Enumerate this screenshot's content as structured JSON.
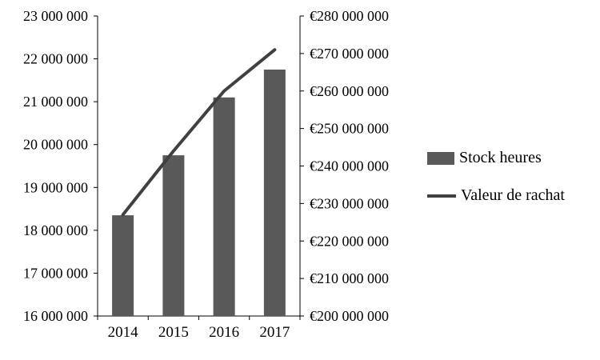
{
  "chart_data": {
    "type": "bar",
    "title": "",
    "xlabel": "",
    "ylabel_left": "",
    "ylabel_right": "",
    "categories": [
      "2014",
      "2015",
      "2016",
      "2017"
    ],
    "series": [
      {
        "name": "Stock heures",
        "type": "bar",
        "axis": "left",
        "color": "#595959",
        "values": [
          18350000,
          19750000,
          21100000,
          21750000
        ]
      },
      {
        "name": "Valeur de rachat",
        "type": "line",
        "axis": "right",
        "color": "#404040",
        "values": [
          227000000,
          244000000,
          260000000,
          271000000
        ]
      }
    ],
    "axis_left": {
      "min": 16000000,
      "max": 23000000,
      "step": 1000000,
      "ticks": [
        "23 000 000",
        "22 000 000",
        "21 000 000",
        "20 000 000",
        "19 000 000",
        "18 000 000",
        "17 000 000",
        "16 000 000"
      ]
    },
    "axis_right": {
      "min": 200000000,
      "max": 280000000,
      "step": 10000000,
      "ticks": [
        "€280 000 000",
        "€270 000 000",
        "€260 000 000",
        "€250 000 000",
        "€240 000 000",
        "€230 000 000",
        "€220 000 000",
        "€210 000 000",
        "€200 000 000"
      ]
    },
    "legend_position": "right",
    "grid": false
  }
}
